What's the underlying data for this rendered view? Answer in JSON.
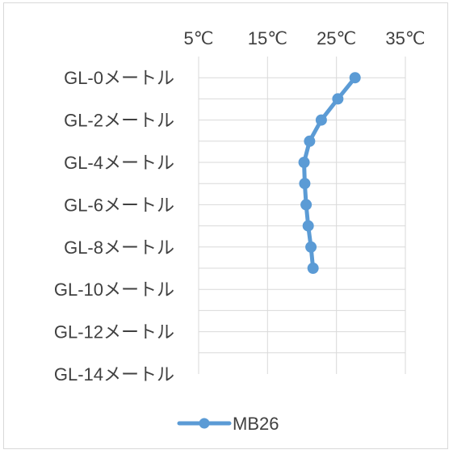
{
  "chart_data": {
    "type": "line",
    "orientation": "vertical-depth-profile",
    "title": "",
    "xlabel": "",
    "ylabel": "",
    "x_axis_position": "top",
    "xlim": [
      5,
      35
    ],
    "x_ticks": [
      "5℃",
      "15℃",
      "25℃",
      "35℃"
    ],
    "x_tick_values": [
      5,
      15,
      25,
      35
    ],
    "y_reversed": true,
    "ylim": [
      -1,
      14
    ],
    "y_ticks": [
      "GL-0メートル",
      "GL-2メートル",
      "GL-4メートル",
      "GL-6メートル",
      "GL-8メートル",
      "GL-10メートル",
      "GL-12メートル",
      "GL-14メートル"
    ],
    "y_tick_values": [
      0,
      2,
      4,
      6,
      8,
      10,
      12,
      14
    ],
    "grid": true,
    "legend_position": "bottom",
    "series": [
      {
        "name": "MB26",
        "color": "#5b9bd5",
        "points": [
          {
            "depth": 0,
            "temp": 27.7
          },
          {
            "depth": 1,
            "temp": 25.2
          },
          {
            "depth": 2,
            "temp": 22.8
          },
          {
            "depth": 3,
            "temp": 21.1
          },
          {
            "depth": 4,
            "temp": 20.3
          },
          {
            "depth": 5,
            "temp": 20.4
          },
          {
            "depth": 6,
            "temp": 20.6
          },
          {
            "depth": 7,
            "temp": 20.9
          },
          {
            "depth": 8,
            "temp": 21.3
          },
          {
            "depth": 9,
            "temp": 21.6
          }
        ]
      }
    ]
  }
}
